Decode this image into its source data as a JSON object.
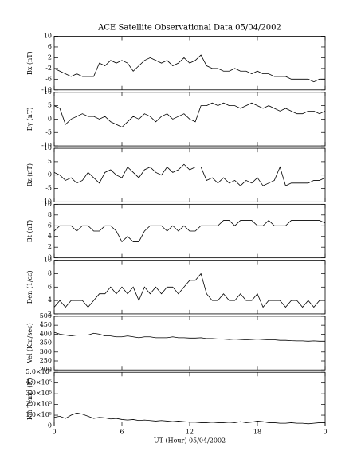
{
  "chart_data": [
    {
      "type": "line",
      "title": "ACE Satellite Observational Data   05/04/2002",
      "ylabel": "Bx (nT)",
      "xlim": [
        0,
        24
      ],
      "ylim": [
        -10,
        10
      ],
      "yticks": [
        -10,
        -6,
        -2,
        2,
        6,
        10
      ],
      "color": "#000000",
      "x": [
        0,
        0.5,
        1,
        1.5,
        2,
        2.5,
        3,
        3.5,
        4,
        4.5,
        5,
        5.5,
        6,
        6.5,
        7,
        7.5,
        8,
        8.5,
        9,
        9.5,
        10,
        10.5,
        11,
        11.5,
        12,
        12.5,
        13,
        13.5,
        14,
        14.5,
        15,
        15.5,
        16,
        16.5,
        17,
        17.5,
        18,
        18.5,
        19,
        19.5,
        20,
        20.5,
        21,
        21.5,
        22,
        22.5,
        23,
        23.5,
        24
      ],
      "values": [
        -2,
        -3,
        -4,
        -5,
        -4,
        -5,
        -5,
        -5,
        0,
        -1,
        1,
        0,
        1,
        0,
        -3,
        -1,
        1,
        2,
        1,
        0,
        1,
        -1,
        0,
        2,
        0,
        1,
        3,
        -1,
        -2,
        -2,
        -3,
        -3,
        -2,
        -3,
        -3,
        -4,
        -3,
        -4,
        -4,
        -5,
        -5,
        -5,
        -6,
        -6,
        -6,
        -6,
        -7,
        -6,
        -6
      ]
    },
    {
      "type": "line",
      "ylabel": "By (nT)",
      "xlim": [
        0,
        24
      ],
      "ylim": [
        -10,
        10
      ],
      "yticks": [
        -10,
        -5,
        0,
        5,
        10
      ],
      "color": "#000000",
      "x": [
        0,
        0.5,
        1,
        1.5,
        2,
        2.5,
        3,
        3.5,
        4,
        4.5,
        5,
        5.5,
        6,
        6.5,
        7,
        7.5,
        8,
        8.5,
        9,
        9.5,
        10,
        10.5,
        11,
        11.5,
        12,
        12.5,
        13,
        13.5,
        14,
        14.5,
        15,
        15.5,
        16,
        16.5,
        17,
        17.5,
        18,
        18.5,
        19,
        19.5,
        20,
        20.5,
        21,
        21.5,
        22,
        22.5,
        23,
        23.5,
        24
      ],
      "values": [
        5,
        4,
        -2,
        0,
        1,
        2,
        1,
        1,
        0,
        1,
        -1,
        -2,
        -3,
        -1,
        1,
        0,
        2,
        1,
        -1,
        1,
        2,
        0,
        1,
        2,
        0,
        -1,
        5,
        5,
        6,
        5,
        6,
        5,
        5,
        4,
        5,
        6,
        5,
        4,
        5,
        4,
        3,
        4,
        3,
        2,
        2,
        3,
        3,
        2,
        3
      ]
    },
    {
      "type": "line",
      "ylabel": "Bz (nT)",
      "xlim": [
        0,
        24
      ],
      "ylim": [
        -10,
        10
      ],
      "yticks": [
        -10,
        -5,
        0,
        5,
        10
      ],
      "color": "#000000",
      "x": [
        0,
        0.5,
        1,
        1.5,
        2,
        2.5,
        3,
        3.5,
        4,
        4.5,
        5,
        5.5,
        6,
        6.5,
        7,
        7.5,
        8,
        8.5,
        9,
        9.5,
        10,
        10.5,
        11,
        11.5,
        12,
        12.5,
        13,
        13.5,
        14,
        14.5,
        15,
        15.5,
        16,
        16.5,
        17,
        17.5,
        18,
        18.5,
        19,
        19.5,
        20,
        20.5,
        21,
        21.5,
        22,
        22.5,
        23,
        23.5,
        24
      ],
      "values": [
        1,
        0,
        -2,
        -1,
        -3,
        -2,
        1,
        -1,
        -3,
        1,
        2,
        0,
        -1,
        3,
        1,
        -1,
        2,
        3,
        1,
        0,
        3,
        1,
        2,
        4,
        2,
        3,
        3,
        -2,
        -1,
        -3,
        -1,
        -3,
        -2,
        -4,
        -2,
        -3,
        -1,
        -4,
        -3,
        -2,
        3,
        -4,
        -3,
        -3,
        -3,
        -3,
        -2,
        -2,
        -1
      ]
    },
    {
      "type": "line",
      "ylabel": "Bt (nT)",
      "xlim": [
        0,
        24
      ],
      "ylim": [
        0,
        10
      ],
      "yticks": [
        0,
        2,
        4,
        6,
        8,
        10
      ],
      "color": "#000000",
      "x": [
        0,
        0.5,
        1,
        1.5,
        2,
        2.5,
        3,
        3.5,
        4,
        4.5,
        5,
        5.5,
        6,
        6.5,
        7,
        7.5,
        8,
        8.5,
        9,
        9.5,
        10,
        10.5,
        11,
        11.5,
        12,
        12.5,
        13,
        13.5,
        14,
        14.5,
        15,
        15.5,
        16,
        16.5,
        17,
        17.5,
        18,
        18.5,
        19,
        19.5,
        20,
        20.5,
        21,
        21.5,
        22,
        22.5,
        23,
        23.5,
        24
      ],
      "values": [
        5,
        6,
        6,
        6,
        5,
        6,
        6,
        5,
        5,
        6,
        6,
        5,
        3,
        4,
        3,
        3,
        5,
        6,
        6,
        6,
        5,
        6,
        5,
        6,
        5,
        5,
        6,
        6,
        6,
        6,
        7,
        7,
        6,
        7,
        7,
        7,
        6,
        6,
        7,
        6,
        6,
        6,
        7,
        7,
        7,
        7,
        7,
        7,
        6.5
      ]
    },
    {
      "type": "line",
      "ylabel": "Den (1/cc)",
      "xlim": [
        0,
        24
      ],
      "ylim": [
        2,
        10
      ],
      "yticks": [
        2,
        4,
        6,
        8,
        10
      ],
      "color": "#000000",
      "x": [
        0,
        0.5,
        1,
        1.5,
        2,
        2.5,
        3,
        3.5,
        4,
        4.5,
        5,
        5.5,
        6,
        6.5,
        7,
        7.5,
        8,
        8.5,
        9,
        9.5,
        10,
        10.5,
        11,
        11.5,
        12,
        12.5,
        13,
        13.5,
        14,
        14.5,
        15,
        15.5,
        16,
        16.5,
        17,
        17.5,
        18,
        18.5,
        19,
        19.5,
        20,
        20.5,
        21,
        21.5,
        22,
        22.5,
        23,
        23.5,
        24
      ],
      "values": [
        3,
        4,
        3,
        4,
        4,
        4,
        3,
        4,
        5,
        5,
        6,
        5,
        6,
        5,
        6,
        4,
        6,
        5,
        6,
        5,
        6,
        6,
        5,
        6,
        7,
        7,
        8,
        5,
        4,
        4,
        5,
        4,
        4,
        5,
        4,
        4,
        5,
        3,
        4,
        4,
        4,
        3,
        4,
        4,
        3,
        4,
        3,
        4,
        4
      ]
    },
    {
      "type": "line",
      "ylabel": "Vel (Km/sec)",
      "xlim": [
        0,
        24
      ],
      "ylim": [
        200,
        500
      ],
      "yticks": [
        200,
        250,
        300,
        350,
        400,
        450,
        500
      ],
      "color": "#000000",
      "x": [
        0,
        0.5,
        1,
        1.5,
        2,
        2.5,
        3,
        3.5,
        4,
        4.5,
        5,
        5.5,
        6,
        6.5,
        7,
        7.5,
        8,
        8.5,
        9,
        9.5,
        10,
        10.5,
        11,
        11.5,
        12,
        12.5,
        13,
        13.5,
        14,
        14.5,
        15,
        15.5,
        16,
        16.5,
        17,
        17.5,
        18,
        18.5,
        19,
        19.5,
        20,
        20.5,
        21,
        21.5,
        22,
        22.5,
        23,
        23.5,
        24
      ],
      "values": [
        410,
        400,
        395,
        390,
        395,
        395,
        395,
        405,
        400,
        390,
        390,
        385,
        385,
        390,
        385,
        380,
        385,
        385,
        380,
        380,
        380,
        385,
        380,
        380,
        378,
        378,
        380,
        375,
        375,
        373,
        372,
        370,
        372,
        370,
        368,
        370,
        372,
        370,
        368,
        368,
        365,
        365,
        363,
        362,
        362,
        360,
        362,
        360,
        360
      ]
    },
    {
      "type": "line",
      "ylabel": "Ion Temp (K)",
      "xlabel": "UT (Hour)  05/04/2002",
      "xlim": [
        0,
        24
      ],
      "xticks": [
        0,
        6,
        12,
        18,
        {
          "value": 24,
          "label": "0"
        }
      ],
      "ylim": [
        0,
        500000
      ],
      "yticks": [
        0,
        {
          "value": 100000,
          "label": "1.0×10⁵"
        },
        {
          "value": 200000,
          "label": "2.0×10⁵"
        },
        {
          "value": 300000,
          "label": "3.0×10⁵"
        },
        {
          "value": 400000,
          "label": "4.0×10⁵"
        },
        {
          "value": 500000,
          "label": "5.0×10⁵"
        }
      ],
      "color": "#000000",
      "x": [
        0,
        0.5,
        1,
        1.5,
        2,
        2.5,
        3,
        3.5,
        4,
        4.5,
        5,
        5.5,
        6,
        6.5,
        7,
        7.5,
        8,
        8.5,
        9,
        9.5,
        10,
        10.5,
        11,
        11.5,
        12,
        12.5,
        13,
        13.5,
        14,
        14.5,
        15,
        15.5,
        16,
        16.5,
        17,
        17.5,
        18,
        18.5,
        19,
        19.5,
        20,
        20.5,
        21,
        21.5,
        22,
        22.5,
        23,
        23.5,
        24
      ],
      "values": [
        80000,
        90000,
        70000,
        100000,
        120000,
        110000,
        90000,
        70000,
        80000,
        75000,
        65000,
        70000,
        60000,
        55000,
        60000,
        50000,
        55000,
        50000,
        45000,
        50000,
        45000,
        40000,
        45000,
        40000,
        35000,
        35000,
        30000,
        30000,
        35000,
        30000,
        30000,
        35000,
        30000,
        40000,
        30000,
        35000,
        45000,
        40000,
        30000,
        30000,
        25000,
        25000,
        30000,
        25000,
        25000,
        20000,
        25000,
        30000,
        30000
      ]
    }
  ]
}
